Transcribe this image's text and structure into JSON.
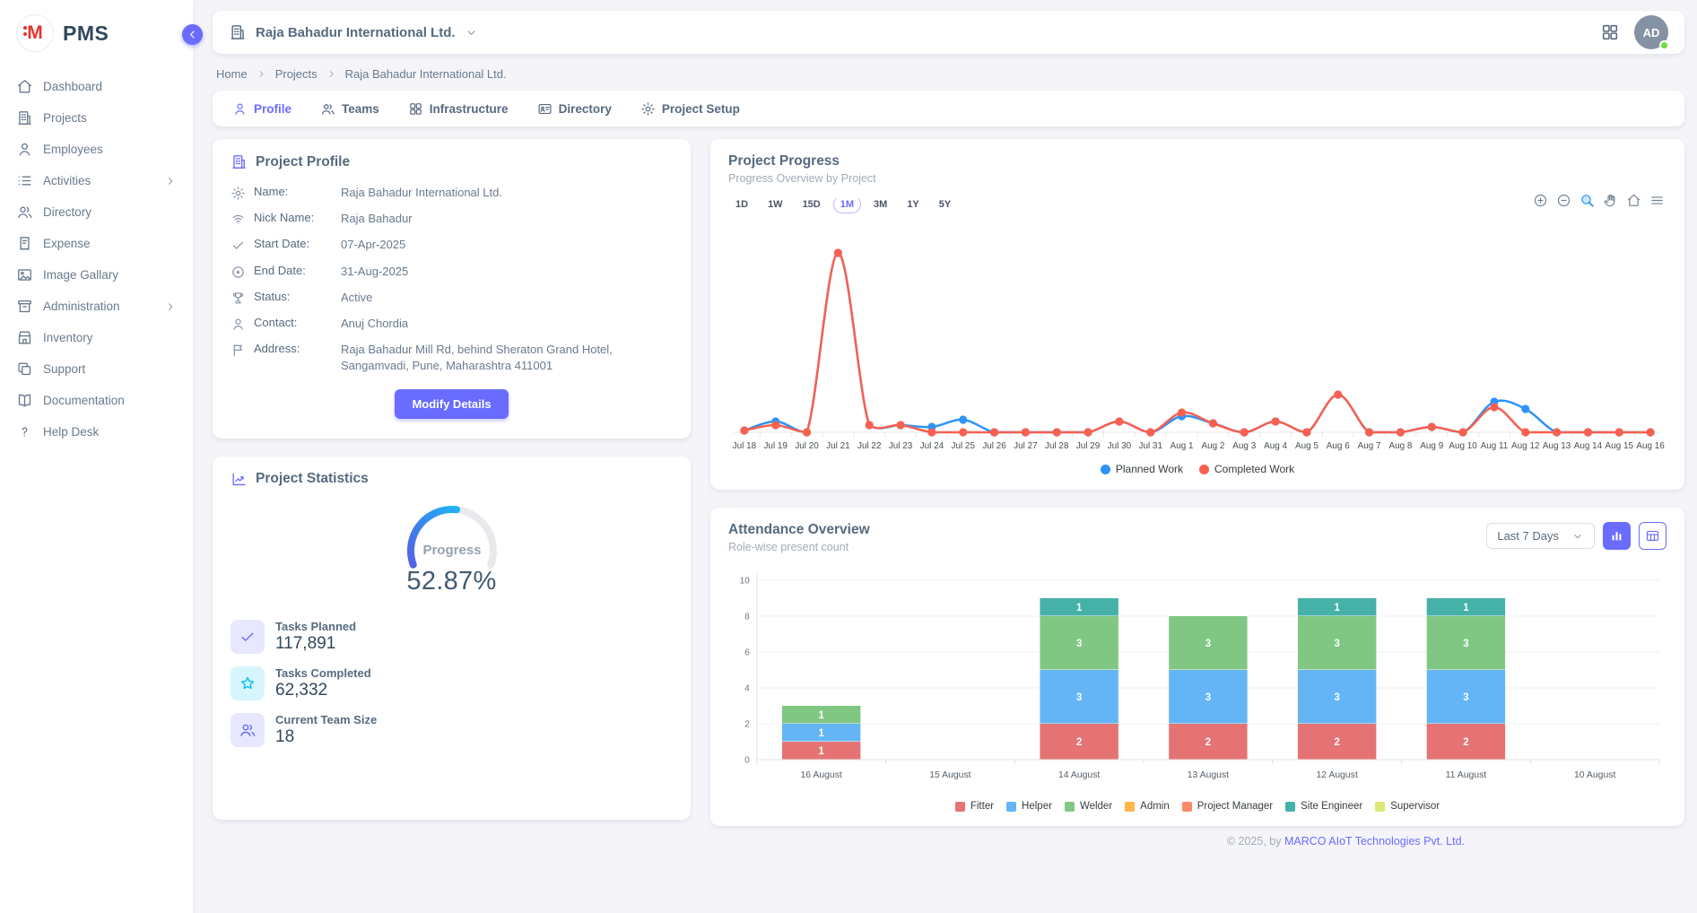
{
  "brand": {
    "name": "PMS",
    "logo_letter": "M"
  },
  "sidebar": {
    "items": [
      {
        "label": "Dashboard",
        "icon": "home"
      },
      {
        "label": "Projects",
        "icon": "building"
      },
      {
        "label": "Employees",
        "icon": "user"
      },
      {
        "label": "Activities",
        "icon": "list",
        "submenu": true
      },
      {
        "label": "Directory",
        "icon": "users"
      },
      {
        "label": "Expense",
        "icon": "receipt"
      },
      {
        "label": "Image Gallary",
        "icon": "image"
      },
      {
        "label": "Administration",
        "icon": "archive",
        "submenu": true
      },
      {
        "label": "Inventory",
        "icon": "store"
      },
      {
        "label": "Support",
        "icon": "copy"
      },
      {
        "label": "Documentation",
        "icon": "book"
      },
      {
        "label": "Help Desk",
        "icon": "help"
      }
    ]
  },
  "header": {
    "company": "Raja Bahadur International Ltd.",
    "icons": [
      "building-icon",
      "chevron-down-icon",
      "apps-grid-icon"
    ],
    "avatar_initials": "AD",
    "status": "online"
  },
  "breadcrumb": {
    "items": [
      "Home",
      "Projects",
      "Raja Bahadur International Ltd."
    ]
  },
  "tabs": [
    {
      "label": "Profile",
      "icon": "user",
      "active": true
    },
    {
      "label": "Teams",
      "icon": "users",
      "active": false
    },
    {
      "label": "Infrastructure",
      "icon": "grid",
      "active": false
    },
    {
      "label": "Directory",
      "icon": "idcard",
      "active": false
    },
    {
      "label": "Project Setup",
      "icon": "gear",
      "active": false
    }
  ],
  "profile": {
    "title": "Project Profile",
    "fields": [
      {
        "icon": "gear",
        "label": "Name:",
        "value": "Raja Bahadur International Ltd."
      },
      {
        "icon": "signal",
        "label": "Nick Name:",
        "value": "Raja Bahadur"
      },
      {
        "icon": "check",
        "label": "Start Date:",
        "value": "07-Apr-2025"
      },
      {
        "icon": "circledot",
        "label": "End Date:",
        "value": "31-Aug-2025"
      },
      {
        "icon": "trophy",
        "label": "Status:",
        "value": "Active"
      },
      {
        "icon": "user",
        "label": "Contact:",
        "value": "Anuj Chordia"
      },
      {
        "icon": "flag",
        "label": "Address:",
        "value": "Raja Bahadur Mill Rd, behind Sheraton Grand Hotel, Sangamvadi, Pune, Maharashtra 411001"
      }
    ],
    "button": "Modify Details"
  },
  "statistics": {
    "title": "Project Statistics",
    "gauge": {
      "label": "Progress",
      "value": "52.87%",
      "percent": 52.87,
      "color_start": "#5360e6",
      "color_end": "#1fb3f5",
      "track": "#e7e9ed"
    },
    "items": [
      {
        "icon": "check",
        "label": "Tasks Planned",
        "value": "117,891",
        "accent": "#696cff",
        "bg": "#e7e7ff"
      },
      {
        "icon": "star",
        "label": "Tasks Completed",
        "value": "62,332",
        "accent": "#03c3ec",
        "bg": "#d7f5fc"
      },
      {
        "icon": "users",
        "label": "Current Team Size",
        "value": "18",
        "accent": "#696cff",
        "bg": "#e7e7ff"
      }
    ]
  },
  "progress_card": {
    "title": "Project Progress",
    "subtitle": "Progress Overview by Project",
    "ranges": [
      "1D",
      "1W",
      "15D",
      "1M",
      "3M",
      "1Y",
      "5Y"
    ],
    "active_range": "1M",
    "toolbar_icons": [
      "zoom-in",
      "zoom-out",
      "selection-zoom",
      "pan",
      "reset-home",
      "menu"
    ]
  },
  "attendance_card": {
    "title": "Attendance Overview",
    "subtitle": "Role-wise present count",
    "range_selector": "Last 7 Days",
    "view_buttons": [
      "bar-chart-view",
      "table-view"
    ]
  },
  "footer": {
    "prefix": "© 2025, by ",
    "company": "MARCO AIoT Technologies Pvt. Ltd."
  },
  "chart_data": [
    {
      "type": "line",
      "title": "Project Progress",
      "x": [
        "Jul 18",
        "Jul 19",
        "Jul 20",
        "Jul 21",
        "Jul 22",
        "Jul 23",
        "Jul 24",
        "Jul 25",
        "Jul 26",
        "Jul 27",
        "Jul 28",
        "Jul 29",
        "Jul 30",
        "Jul 31",
        "Aug 1",
        "Aug 2",
        "Aug 3",
        "Aug 4",
        "Aug 5",
        "Aug 6",
        "Aug 7",
        "Aug 8",
        "Aug 9",
        "Aug 10",
        "Aug 11",
        "Aug 12",
        "Aug 13",
        "Aug 14",
        "Aug 15",
        "Aug 16"
      ],
      "series": [
        {
          "name": "Planned Work",
          "color": "#2e93fa",
          "values": [
            1,
            6,
            0,
            100,
            4,
            4,
            3,
            7,
            0,
            0,
            0,
            0,
            6,
            0,
            9,
            5,
            0,
            6,
            0,
            21,
            0,
            0,
            3,
            0,
            17,
            13,
            0,
            0,
            0,
            0
          ]
        },
        {
          "name": "Completed Work",
          "color": "#f8604f",
          "values": [
            1,
            4,
            0,
            100,
            4,
            4,
            0,
            0,
            0,
            0,
            0,
            0,
            6,
            0,
            11,
            5,
            0,
            6,
            0,
            21,
            0,
            0,
            3,
            0,
            14,
            0,
            0,
            0,
            0,
            0
          ]
        }
      ],
      "ymax": 104,
      "grid": false,
      "legend_position": "bottom",
      "smooth": true
    },
    {
      "type": "bar",
      "stacked": true,
      "title": "Attendance Overview",
      "categories": [
        "16 August",
        "15 August",
        "14 August",
        "13 August",
        "12 August",
        "11 August",
        "10 August"
      ],
      "series": [
        {
          "name": "Fitter",
          "color": "#e57373",
          "values": [
            1,
            0,
            2,
            2,
            2,
            2,
            0
          ]
        },
        {
          "name": "Helper",
          "color": "#64b5f6",
          "values": [
            1,
            0,
            3,
            3,
            3,
            3,
            0
          ]
        },
        {
          "name": "Welder",
          "color": "#81c784",
          "values": [
            1,
            0,
            3,
            3,
            3,
            3,
            0
          ]
        },
        {
          "name": "Admin",
          "color": "#ffb74d",
          "values": [
            0,
            0,
            0,
            0,
            0,
            0,
            0
          ]
        },
        {
          "name": "Project Manager",
          "color": "#ff8a65",
          "values": [
            0,
            0,
            0,
            0,
            0,
            0,
            0
          ]
        },
        {
          "name": "Site Engineer",
          "color": "#45b1a8",
          "values": [
            0,
            0,
            1,
            0,
            1,
            1,
            0
          ]
        },
        {
          "name": "Supervisor",
          "color": "#dce775",
          "values": [
            0,
            0,
            0,
            0,
            0,
            0,
            0
          ]
        }
      ],
      "ylim": [
        0,
        10
      ],
      "yticks": [
        0,
        2,
        4,
        6,
        8,
        10
      ],
      "grid": true,
      "legend_position": "bottom"
    }
  ]
}
